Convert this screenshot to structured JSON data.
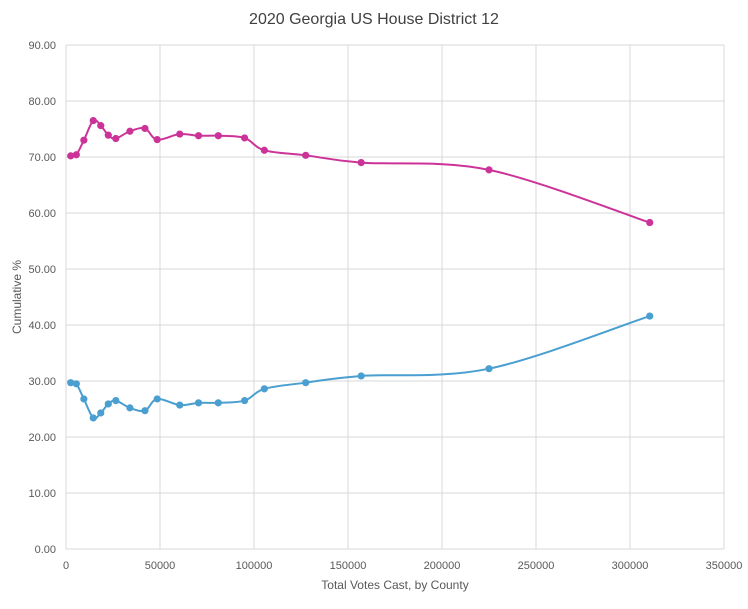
{
  "chart_data": {
    "type": "scatter",
    "title": "2020 Georgia US House District 12",
    "xlabel": "Total Votes Cast, by County",
    "ylabel": "Cumulative %",
    "xlim": [
      0,
      350000
    ],
    "ylim": [
      0,
      90
    ],
    "x_ticks": [
      0,
      50000,
      100000,
      150000,
      200000,
      250000,
      300000,
      350000
    ],
    "x_tick_labels": [
      "0",
      "50000",
      "100000",
      "150000",
      "200000",
      "250000",
      "300000",
      "350000"
    ],
    "y_ticks": [
      0,
      10,
      20,
      30,
      40,
      50,
      60,
      70,
      80,
      90
    ],
    "y_tick_labels": [
      "0.00",
      "10.00",
      "20.00",
      "30.00",
      "40.00",
      "50.00",
      "60.00",
      "70.00",
      "80.00",
      "90.00"
    ],
    "grid": true,
    "smooth_lines": true,
    "series": [
      {
        "color": "#cc3399",
        "points": [
          [
            2500,
            70.2
          ],
          [
            5500,
            70.4
          ],
          [
            9500,
            73.0
          ],
          [
            14500,
            76.5
          ],
          [
            18500,
            75.6
          ],
          [
            22500,
            73.9
          ],
          [
            26500,
            73.3
          ],
          [
            34000,
            74.6
          ],
          [
            42000,
            75.1
          ],
          [
            48500,
            73.1
          ],
          [
            60500,
            74.1
          ],
          [
            70500,
            73.8
          ],
          [
            81000,
            73.8
          ],
          [
            95000,
            73.4
          ],
          [
            105500,
            71.2
          ],
          [
            127500,
            70.3
          ],
          [
            157000,
            69.0
          ],
          [
            225000,
            67.7
          ],
          [
            310500,
            58.3
          ]
        ]
      },
      {
        "color": "#4a9fd0",
        "points": [
          [
            2500,
            29.7
          ],
          [
            5500,
            29.5
          ],
          [
            9500,
            26.8
          ],
          [
            14500,
            23.4
          ],
          [
            18500,
            24.3
          ],
          [
            22500,
            25.9
          ],
          [
            26500,
            26.5
          ],
          [
            34000,
            25.2
          ],
          [
            42000,
            24.7
          ],
          [
            48500,
            26.8
          ],
          [
            60500,
            25.7
          ],
          [
            70500,
            26.1
          ],
          [
            81000,
            26.1
          ],
          [
            95000,
            26.5
          ],
          [
            105500,
            28.6
          ],
          [
            127500,
            29.7
          ],
          [
            157000,
            30.9
          ],
          [
            225000,
            32.2
          ],
          [
            310500,
            41.6
          ]
        ]
      }
    ]
  }
}
